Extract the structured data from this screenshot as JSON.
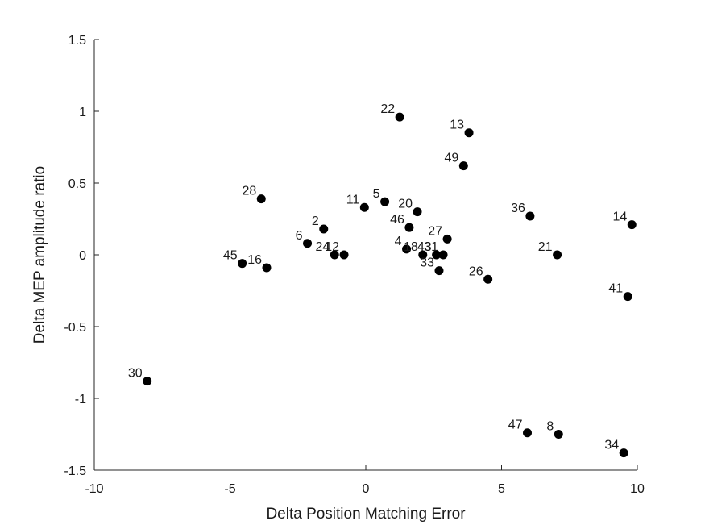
{
  "chart_data": {
    "type": "scatter",
    "title": "",
    "xlabel": "Delta Position Matching Error",
    "ylabel": "Delta MEP amplitude ratio",
    "xlim": [
      -10,
      10
    ],
    "ylim": [
      -1.5,
      1.5
    ],
    "xticks": [
      -10,
      -5,
      0,
      5,
      10
    ],
    "yticks": [
      -1.5,
      -1,
      -0.5,
      0,
      0.5,
      1,
      1.5
    ],
    "xtick_labels": [
      "-10",
      "-5",
      "0",
      "5",
      "10"
    ],
    "ytick_labels": [
      "-1.5",
      "-1",
      "-0.5",
      "0",
      "0.5",
      "1",
      "1.5"
    ],
    "grid": false,
    "marker_color": "#000000",
    "points": [
      {
        "label": "22",
        "x": 1.25,
        "y": 0.96
      },
      {
        "label": "13",
        "x": 3.8,
        "y": 0.85
      },
      {
        "label": "49",
        "x": 3.6,
        "y": 0.62
      },
      {
        "label": "28",
        "x": -3.85,
        "y": 0.39
      },
      {
        "label": "11",
        "x": -0.05,
        "y": 0.33
      },
      {
        "label": "5",
        "x": 0.7,
        "y": 0.37
      },
      {
        "label": "20",
        "x": 1.9,
        "y": 0.3
      },
      {
        "label": "36",
        "x": 6.05,
        "y": 0.27
      },
      {
        "label": "14",
        "x": 9.8,
        "y": 0.21
      },
      {
        "label": "2",
        "x": -1.55,
        "y": 0.18
      },
      {
        "label": "46",
        "x": 1.6,
        "y": 0.19
      },
      {
        "label": "27",
        "x": 3.0,
        "y": 0.11
      },
      {
        "label": "6",
        "x": -2.15,
        "y": 0.08
      },
      {
        "label": "4",
        "x": 1.5,
        "y": 0.04
      },
      {
        "label": "24",
        "x": -1.15,
        "y": 0.0
      },
      {
        "label": "12",
        "x": -0.8,
        "y": 0.0
      },
      {
        "label": "18",
        "x": 2.1,
        "y": 0.0
      },
      {
        "label": "43",
        "x": 2.6,
        "y": 0.0
      },
      {
        "label": "31",
        "x": 2.85,
        "y": 0.0
      },
      {
        "label": "33",
        "x": 2.7,
        "y": -0.11
      },
      {
        "label": "21",
        "x": 7.05,
        "y": 0.0
      },
      {
        "label": "45",
        "x": -4.55,
        "y": -0.06
      },
      {
        "label": "16",
        "x": -3.65,
        "y": -0.09
      },
      {
        "label": "26",
        "x": 4.5,
        "y": -0.17
      },
      {
        "label": "41",
        "x": 9.65,
        "y": -0.29
      },
      {
        "label": "30",
        "x": -8.05,
        "y": -0.88
      },
      {
        "label": "47",
        "x": 5.95,
        "y": -1.24
      },
      {
        "label": "8",
        "x": 7.1,
        "y": -1.25
      },
      {
        "label": "34",
        "x": 9.5,
        "y": -1.38
      }
    ]
  }
}
